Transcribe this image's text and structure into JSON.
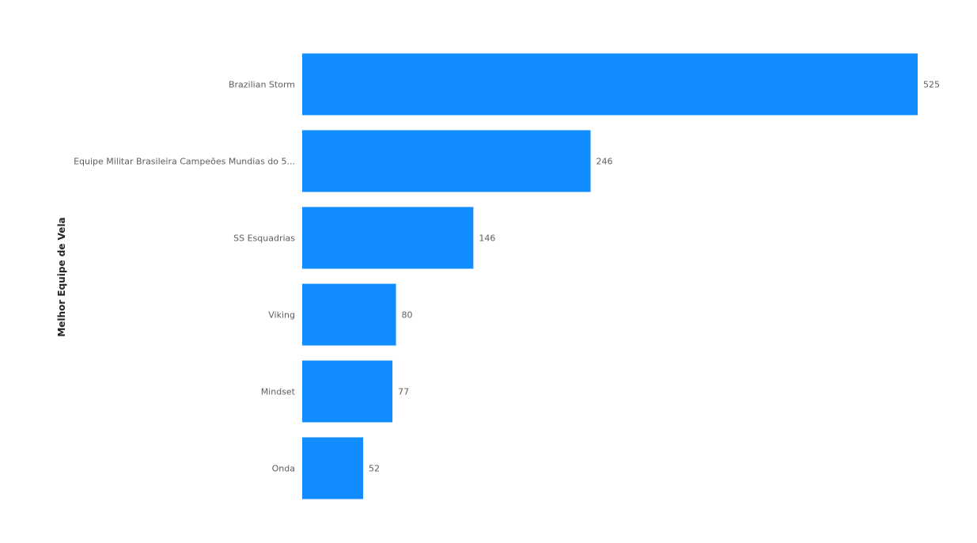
{
  "chart_data": {
    "type": "bar",
    "orientation": "horizontal",
    "title": "",
    "xlabel": "",
    "ylabel": "Melhor Equipe de Vela",
    "categories": [
      "Brazilian Storm",
      "Equipe Militar Brasileira Campeões Mundias do 5...",
      "SS Esquadrias",
      "Viking",
      "Mindset",
      "Onda"
    ],
    "values": [
      525,
      246,
      146,
      80,
      77,
      52
    ],
    "xlim": [
      0,
      525
    ],
    "grid": false,
    "data_labels": true,
    "bar_color": "#118dff"
  }
}
